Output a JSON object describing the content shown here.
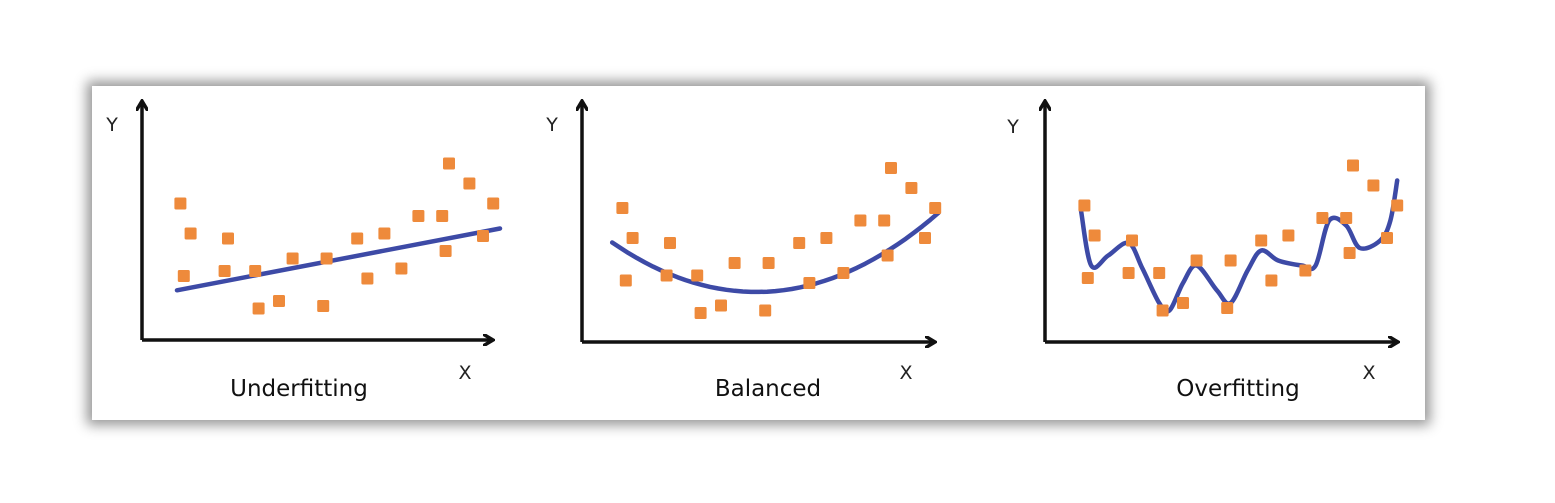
{
  "colors": {
    "points": "#ee8a3b",
    "fit_line": "#3d4aa6",
    "axes": "#111111"
  },
  "chart_data": [
    {
      "type": "scatter",
      "title": "Underfitting",
      "xlabel": "X",
      "ylabel": "Y",
      "xlim": [
        0,
        10
      ],
      "ylim": [
        0,
        10
      ],
      "grid": false,
      "legend": "none",
      "points": [
        {
          "x": 0.6,
          "y": 5.7
        },
        {
          "x": 0.9,
          "y": 4.5
        },
        {
          "x": 0.7,
          "y": 2.8
        },
        {
          "x": 2.0,
          "y": 4.3
        },
        {
          "x": 1.9,
          "y": 3.0
        },
        {
          "x": 2.8,
          "y": 3.0
        },
        {
          "x": 2.9,
          "y": 1.5
        },
        {
          "x": 3.5,
          "y": 1.8
        },
        {
          "x": 3.9,
          "y": 3.5
        },
        {
          "x": 4.8,
          "y": 1.6
        },
        {
          "x": 4.9,
          "y": 3.5
        },
        {
          "x": 5.8,
          "y": 4.3
        },
        {
          "x": 6.1,
          "y": 2.7
        },
        {
          "x": 6.6,
          "y": 4.5
        },
        {
          "x": 7.1,
          "y": 3.1
        },
        {
          "x": 7.6,
          "y": 5.2
        },
        {
          "x": 8.3,
          "y": 5.2
        },
        {
          "x": 8.4,
          "y": 3.8
        },
        {
          "x": 8.5,
          "y": 7.3
        },
        {
          "x": 9.1,
          "y": 6.5
        },
        {
          "x": 9.5,
          "y": 4.4
        },
        {
          "x": 9.8,
          "y": 5.7
        }
      ],
      "fit": {
        "kind": "linear",
        "x_range": [
          0.5,
          10.0
        ],
        "coef": [
          2.1,
          0.26
        ]
      }
    },
    {
      "type": "scatter",
      "title": "Balanced",
      "xlabel": "X",
      "ylabel": "Y",
      "xlim": [
        0,
        10
      ],
      "ylim": [
        0,
        10
      ],
      "grid": false,
      "legend": "none",
      "points": [
        {
          "x": 0.6,
          "y": 5.6
        },
        {
          "x": 0.9,
          "y": 4.4
        },
        {
          "x": 0.7,
          "y": 2.7
        },
        {
          "x": 2.0,
          "y": 4.2
        },
        {
          "x": 1.9,
          "y": 2.9
        },
        {
          "x": 2.8,
          "y": 2.9
        },
        {
          "x": 2.9,
          "y": 1.4
        },
        {
          "x": 3.5,
          "y": 1.7
        },
        {
          "x": 3.9,
          "y": 3.4
        },
        {
          "x": 4.8,
          "y": 1.5
        },
        {
          "x": 4.9,
          "y": 3.4
        },
        {
          "x": 5.8,
          "y": 4.2
        },
        {
          "x": 6.1,
          "y": 2.6
        },
        {
          "x": 6.6,
          "y": 4.4
        },
        {
          "x": 7.1,
          "y": 3.0
        },
        {
          "x": 7.6,
          "y": 5.1
        },
        {
          "x": 8.3,
          "y": 5.1
        },
        {
          "x": 8.4,
          "y": 3.7
        },
        {
          "x": 8.5,
          "y": 7.2
        },
        {
          "x": 9.1,
          "y": 6.4
        },
        {
          "x": 9.5,
          "y": 4.4
        },
        {
          "x": 9.8,
          "y": 5.6
        }
      ],
      "fit": {
        "kind": "quadratic",
        "x_range": [
          0.3,
          9.9
        ],
        "coef": [
          4.51,
          -1.0,
          0.1102
        ]
      }
    },
    {
      "type": "scatter",
      "title": "Overfitting",
      "xlabel": "X",
      "ylabel": "Y",
      "xlim": [
        0,
        10
      ],
      "ylim": [
        0,
        10
      ],
      "grid": false,
      "legend": "none",
      "points": [
        {
          "x": 0.6,
          "y": 5.7
        },
        {
          "x": 0.9,
          "y": 4.5
        },
        {
          "x": 0.7,
          "y": 2.8
        },
        {
          "x": 2.0,
          "y": 4.3
        },
        {
          "x": 1.9,
          "y": 3.0
        },
        {
          "x": 2.8,
          "y": 3.0
        },
        {
          "x": 2.9,
          "y": 1.5
        },
        {
          "x": 3.5,
          "y": 1.8
        },
        {
          "x": 3.9,
          "y": 3.5
        },
        {
          "x": 4.8,
          "y": 1.6
        },
        {
          "x": 4.9,
          "y": 3.5
        },
        {
          "x": 5.8,
          "y": 4.3
        },
        {
          "x": 6.1,
          "y": 2.7
        },
        {
          "x": 6.6,
          "y": 4.5
        },
        {
          "x": 7.1,
          "y": 3.1
        },
        {
          "x": 7.6,
          "y": 5.2
        },
        {
          "x": 8.3,
          "y": 5.2
        },
        {
          "x": 8.4,
          "y": 3.8
        },
        {
          "x": 8.5,
          "y": 7.3
        },
        {
          "x": 9.1,
          "y": 6.5
        },
        {
          "x": 9.5,
          "y": 4.4
        },
        {
          "x": 9.8,
          "y": 5.7
        }
      ],
      "fit": {
        "kind": "curve",
        "points": [
          {
            "x": 0.5,
            "y": 5.5
          },
          {
            "x": 0.8,
            "y": 3.3
          },
          {
            "x": 1.3,
            "y": 3.7
          },
          {
            "x": 1.9,
            "y": 4.2
          },
          {
            "x": 2.3,
            "y": 3.2
          },
          {
            "x": 2.8,
            "y": 1.8
          },
          {
            "x": 3.1,
            "y": 1.5
          },
          {
            "x": 3.5,
            "y": 2.6
          },
          {
            "x": 3.9,
            "y": 3.3
          },
          {
            "x": 4.5,
            "y": 2.3
          },
          {
            "x": 4.9,
            "y": 1.8
          },
          {
            "x": 5.4,
            "y": 3.1
          },
          {
            "x": 5.8,
            "y": 3.9
          },
          {
            "x": 6.3,
            "y": 3.5
          },
          {
            "x": 7.0,
            "y": 3.3
          },
          {
            "x": 7.4,
            "y": 3.3
          },
          {
            "x": 7.8,
            "y": 5.1
          },
          {
            "x": 8.3,
            "y": 4.9
          },
          {
            "x": 8.7,
            "y": 4.0
          },
          {
            "x": 9.3,
            "y": 4.3
          },
          {
            "x": 9.6,
            "y": 5.1
          },
          {
            "x": 9.8,
            "y": 6.7
          }
        ]
      }
    }
  ]
}
